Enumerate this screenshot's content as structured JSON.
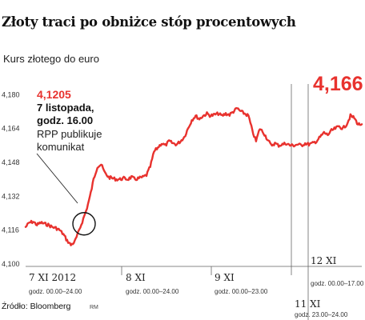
{
  "title": "Złoty traci po obniżce stóp procentowych",
  "subtitle": "Kurs złotego do euro",
  "source": "Źródło: Bloomberg",
  "credit": "RM",
  "colors": {
    "line": "#e8322e",
    "highlight": "#e8322e",
    "axis": "#888888",
    "text": "#1a1a1a"
  },
  "chart_data": {
    "type": "line",
    "title": "Złoty traci po obniżce stóp procentowych",
    "ylabel": "Kurs złotego do euro",
    "ylim": [
      4.1,
      4.182
    ],
    "yticks": [
      "4,180",
      "4,164",
      "4,148",
      "4,132",
      "4,116",
      "4,100"
    ],
    "ytick_values": [
      4.18,
      4.164,
      4.148,
      4.132,
      4.116,
      4.1
    ],
    "grid": false,
    "last_value_label": "4,166",
    "days": [
      {
        "label": "7 XI 2012",
        "hours": "godz. 00.00–24.00"
      },
      {
        "label": "8 XI",
        "hours": "godz. 00.00–24.00"
      },
      {
        "label": "9 XI",
        "hours": "godz. 00.00–23.00"
      },
      {
        "label": "11 XI",
        "hours": "godz. 23.00–24.00"
      },
      {
        "label": "12 XI",
        "hours": "godz. 00.00–17.00"
      }
    ],
    "annotation": {
      "value": "4,1205",
      "lines": [
        "7 listopada,",
        "godz. 16.00",
        "RPP publikuje",
        "komunikat"
      ]
    },
    "series": [
      {
        "values": [
          4.1175,
          4.1195,
          4.12,
          4.1185,
          4.1195,
          4.119,
          4.1185,
          4.1175,
          4.117,
          4.116,
          4.114,
          4.111,
          4.109,
          4.1105,
          4.115,
          4.12,
          4.125,
          4.1315,
          4.14,
          4.146,
          4.147,
          4.143,
          4.141,
          4.1405,
          4.14,
          4.14,
          4.1405,
          4.14,
          4.141,
          4.14,
          4.1405,
          4.141,
          4.142,
          4.146,
          4.153,
          4.155,
          4.157,
          4.156,
          4.158,
          4.157,
          4.1565,
          4.158,
          4.16,
          4.164,
          4.168,
          4.17,
          4.1685,
          4.17,
          4.171,
          4.17,
          4.1705,
          4.171,
          4.17,
          4.171,
          4.1705,
          4.172,
          4.1735,
          4.172,
          4.171,
          4.17,
          4.163,
          4.158,
          4.164,
          4.162,
          4.159,
          4.156,
          4.157,
          4.156,
          4.1565,
          4.157,
          4.156,
          4.156,
          4.1565,
          4.156,
          4.157,
          4.1565,
          4.157,
          4.158,
          4.16,
          4.162,
          4.161,
          4.163,
          4.164,
          4.165,
          4.164,
          4.166,
          4.17,
          4.169,
          4.166,
          4.166
        ]
      }
    ]
  }
}
